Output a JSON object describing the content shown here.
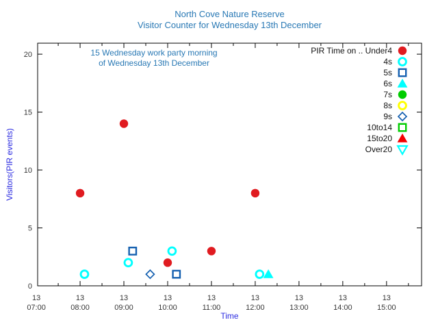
{
  "title": {
    "line1": "North Cove Nature Reserve",
    "line2": "Visitor Counter for Wednesday 13th December"
  },
  "annotation": {
    "line1": "15 Wednesday work party morning",
    "line2": "of Wednesday 13th December"
  },
  "legend": {
    "labels": [
      "PIR Time on .. Under4",
      "4s",
      "5s",
      "6s",
      "7s",
      "8s",
      "9s",
      "10to14",
      "15to20",
      "Over20"
    ]
  },
  "axes": {
    "x_date_line": "13",
    "x_tick_times": [
      "07:00",
      "08:00",
      "09:00",
      "10:00",
      "11:00",
      "12:00",
      "13:00",
      "14:00",
      "15:00"
    ],
    "y_ticks": [
      "0",
      "5",
      "10",
      "15",
      "20"
    ]
  },
  "colors": {
    "title": "#2878b4",
    "annotation": "#2878b4",
    "axis_label": "#2b2be0",
    "tick_label": "#363636",
    "border": "#000000",
    "legend_text": "#111111"
  },
  "chart_data": {
    "type": "scatter",
    "title": "North Cove Nature Reserve",
    "subtitle": "Visitor Counter for Wednesday 13th December",
    "xlabel": "Time",
    "ylabel": "Visitors(PIR events)",
    "legend_title": "PIR Time on ..",
    "legend_position": "top-right",
    "grid": false,
    "x_axis": {
      "date": "13",
      "tick_hours": [
        7,
        8,
        9,
        10,
        11,
        12,
        13,
        14,
        15
      ],
      "minor_interval_hours": 0.5,
      "range_hours": [
        7.03,
        15.8
      ]
    },
    "y_axis": {
      "ticks": [
        0,
        5,
        10,
        15,
        20
      ],
      "range": [
        0,
        20.95
      ]
    },
    "series": [
      {
        "name": "Under4",
        "marker": "filled_circle",
        "color": "#e01b20",
        "points": [
          {
            "time": "08:00",
            "value": 8
          },
          {
            "time": "09:00",
            "value": 14
          },
          {
            "time": "10:00",
            "value": 2
          },
          {
            "time": "11:00",
            "value": 3
          },
          {
            "time": "12:00",
            "value": 8
          }
        ]
      },
      {
        "name": "4s",
        "marker": "open_circle",
        "color": "#00ffff",
        "points": [
          {
            "time": "08:06",
            "value": 1
          },
          {
            "time": "09:06",
            "value": 2
          },
          {
            "time": "10:06",
            "value": 3
          },
          {
            "time": "12:06",
            "value": 1
          }
        ]
      },
      {
        "name": "5s",
        "marker": "open_square",
        "color": "#1560b0",
        "points": [
          {
            "time": "09:12",
            "value": 3
          },
          {
            "time": "10:12",
            "value": 1
          }
        ]
      },
      {
        "name": "6s",
        "marker": "filled_triangle_up",
        "color": "#00ffff",
        "points": [
          {
            "time": "12:18",
            "value": 1
          }
        ]
      },
      {
        "name": "7s",
        "marker": "filled_circle",
        "color": "#00cc00",
        "points": []
      },
      {
        "name": "8s",
        "marker": "open_circle",
        "color": "#ffff00",
        "points": []
      },
      {
        "name": "9s",
        "marker": "open_diamond",
        "color": "#1560b0",
        "points": [
          {
            "time": "09:36",
            "value": 1
          }
        ]
      },
      {
        "name": "10to14",
        "marker": "open_square",
        "color": "#00cc00",
        "points": []
      },
      {
        "name": "15to20",
        "marker": "filled_triangle_up",
        "color": "#f40000",
        "points": []
      },
      {
        "name": "Over20",
        "marker": "open_triangle_down",
        "color": "#00ffff",
        "points": []
      }
    ]
  }
}
